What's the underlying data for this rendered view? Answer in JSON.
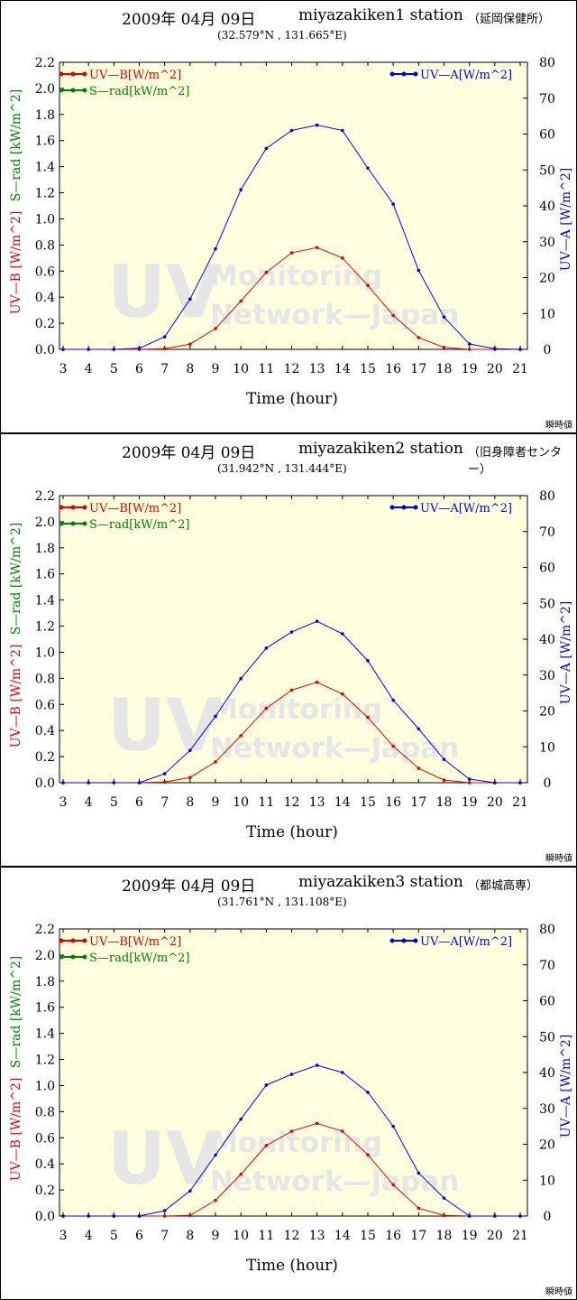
{
  "colors": {
    "uvb": "#e00000",
    "srad": "#008000",
    "uva": "#0000e0",
    "plot_bg": "#ffffe0",
    "watermark": "#e6e6e6"
  },
  "watermark": {
    "big": "UV",
    "line1": "Monitoring",
    "line2": "Network—Japan"
  },
  "legend": {
    "uvb": "UV—B[W/m^2]",
    "srad": "S—rad[kW/m^2]",
    "uva": "UV—A[W/m^2]"
  },
  "axes": {
    "xlabel": "Time (hour)",
    "ylabel_left_uvb": "UV—B [W/m^2]",
    "ylabel_left_srad": "S—rad [kW/m^2]",
    "ylabel_right": "UV—A [W/m^2]",
    "xlim": [
      3,
      21
    ],
    "ylim_left": [
      0,
      2.2
    ],
    "ylim_right": [
      0,
      80
    ],
    "xticks": [
      "3",
      "4",
      "5",
      "6",
      "7",
      "8",
      "9",
      "10",
      "11",
      "12",
      "13",
      "14",
      "15",
      "16",
      "17",
      "18",
      "19",
      "20",
      "21"
    ],
    "yticks_left": [
      "0.0",
      "0.2",
      "0.4",
      "0.6",
      "0.8",
      "1.0",
      "1.2",
      "1.4",
      "1.6",
      "1.8",
      "2.0",
      "2.2"
    ],
    "yticks_right": [
      "0",
      "10",
      "20",
      "30",
      "40",
      "50",
      "60",
      "70",
      "80"
    ]
  },
  "panels": [
    {
      "date": "2009年 04月 09日",
      "station": "miyazakiken1 station",
      "location_jp": "（延岡保健所）",
      "coords": "(32.579°N , 131.665°E)",
      "note": "瞬時値"
    },
    {
      "date": "2009年 04月 09日",
      "station": "miyazakiken2 station",
      "location_jp": "（旧身障者センター）",
      "coords": "(31.942°N , 131.444°E)",
      "note": "瞬時値"
    },
    {
      "date": "2009年 04月 09日",
      "station": "miyazakiken3 station",
      "location_jp": "（都城高専）",
      "coords": "(31.761°N , 131.108°E)",
      "note": "瞬時値"
    }
  ],
  "chart_data": [
    {
      "type": "line",
      "title": "miyazakiken1 station",
      "x": [
        3,
        4,
        5,
        6,
        7,
        8,
        9,
        10,
        11,
        12,
        13,
        14,
        15,
        16,
        17,
        18,
        19,
        20,
        21
      ],
      "series": [
        {
          "name": "UV—B[W/m^2]",
          "axis": "left",
          "values": [
            0,
            0,
            0,
            0,
            0.005,
            0.04,
            0.16,
            0.37,
            0.59,
            0.74,
            0.78,
            0.7,
            0.49,
            0.26,
            0.09,
            0.015,
            0,
            0,
            0
          ]
        },
        {
          "name": "UV—A[W/m^2]",
          "axis": "right",
          "values": [
            0,
            0,
            0,
            0.3,
            3.5,
            14,
            28,
            44.5,
            56,
            61,
            62.5,
            61,
            50.5,
            40.5,
            22,
            9,
            1.5,
            0.2,
            0
          ]
        }
      ]
    },
    {
      "type": "line",
      "title": "miyazakiken2 station",
      "x": [
        3,
        4,
        5,
        6,
        7,
        8,
        9,
        10,
        11,
        12,
        13,
        14,
        15,
        16,
        17,
        18,
        19,
        20,
        21
      ],
      "series": [
        {
          "name": "UV—B[W/m^2]",
          "axis": "left",
          "values": [
            0,
            0,
            0,
            0,
            0.005,
            0.04,
            0.16,
            0.36,
            0.57,
            0.71,
            0.77,
            0.68,
            0.5,
            0.28,
            0.11,
            0.02,
            0,
            0,
            0
          ]
        },
        {
          "name": "UV—A[W/m^2]",
          "axis": "right",
          "values": [
            0,
            0,
            0,
            0,
            2.5,
            9,
            18.5,
            29,
            37.5,
            42,
            45,
            41.5,
            34,
            23,
            15,
            6.5,
            1,
            0,
            0
          ]
        }
      ]
    },
    {
      "type": "line",
      "title": "miyazakiken3 station",
      "x": [
        3,
        4,
        5,
        6,
        7,
        8,
        9,
        10,
        11,
        12,
        13,
        14,
        15,
        16,
        17,
        18,
        19,
        20,
        21
      ],
      "series": [
        {
          "name": "UV—B[W/m^2]",
          "axis": "left",
          "values": [
            0,
            0,
            0,
            0,
            0,
            0.005,
            0.12,
            0.32,
            0.54,
            0.65,
            0.71,
            0.65,
            0.47,
            0.24,
            0.06,
            0.005,
            0,
            0,
            0
          ]
        },
        {
          "name": "UV—A[W/m^2]",
          "axis": "right",
          "values": [
            0,
            0,
            0,
            0,
            1.5,
            7,
            17,
            27,
            36.5,
            39.5,
            42,
            40,
            34.5,
            25,
            12,
            5,
            0,
            0,
            0
          ]
        }
      ]
    }
  ]
}
